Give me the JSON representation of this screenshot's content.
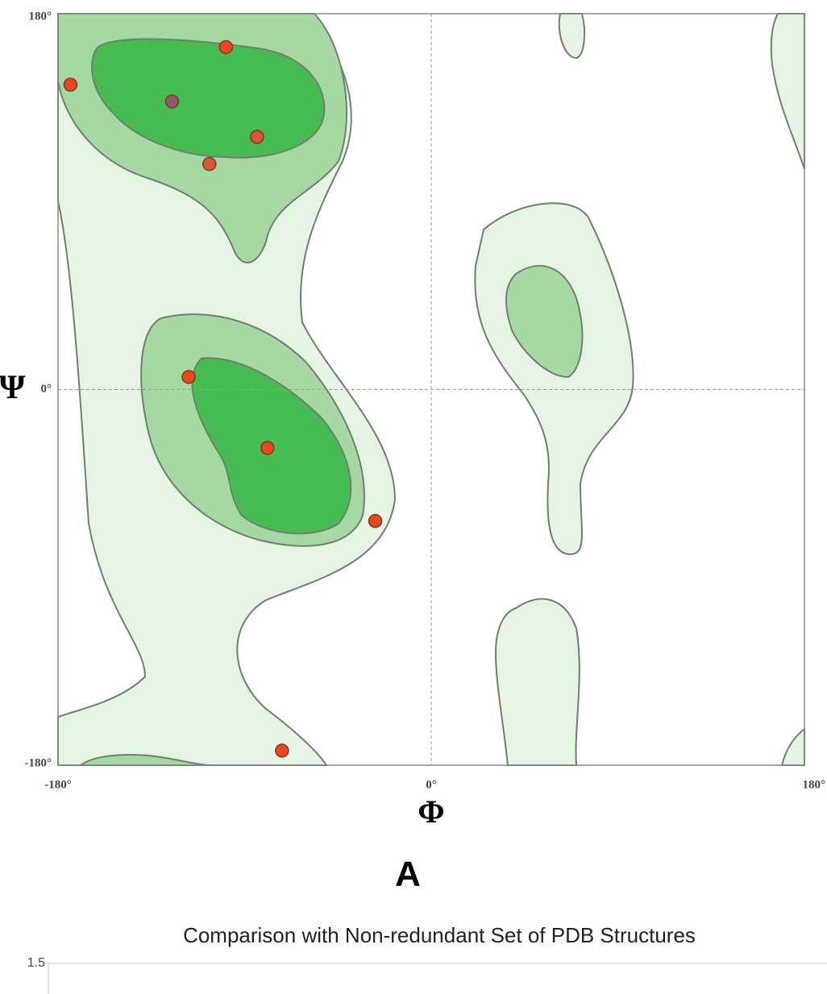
{
  "chart_data": [
    {
      "type": "scatter",
      "panel_label": "A",
      "x_label": "Φ",
      "y_label": "Ψ",
      "x": [
        -99,
        -174,
        -125,
        -84,
        -107,
        -117,
        -79,
        -27,
        -72
      ],
      "values": [
        164,
        146,
        138,
        121,
        108,
        6,
        -28,
        -63,
        -173
      ],
      "colors": [
        "#e8481c",
        "#e8481c",
        "#8e5a72",
        "#d9553a",
        "#d9553a",
        "#e8481c",
        "#e8481c",
        "#e8481c",
        "#e8481c"
      ],
      "xlim": [
        -180,
        180
      ],
      "ylim": [
        -180,
        180
      ],
      "xticks": [
        {
          "value": -180,
          "label": "-180°"
        },
        {
          "value": 0,
          "label": "0°"
        },
        {
          "value": 180,
          "label": "180°"
        }
      ],
      "yticks": [
        {
          "value": -180,
          "label": "-180°"
        },
        {
          "value": 0,
          "label": "0°"
        },
        {
          "value": 180,
          "label": "180°"
        }
      ],
      "grid": true
    },
    {
      "type": "line",
      "title": "Comparison with Non-redundant Set of PDB Structures",
      "yticks": [
        1.5
      ]
    }
  ]
}
